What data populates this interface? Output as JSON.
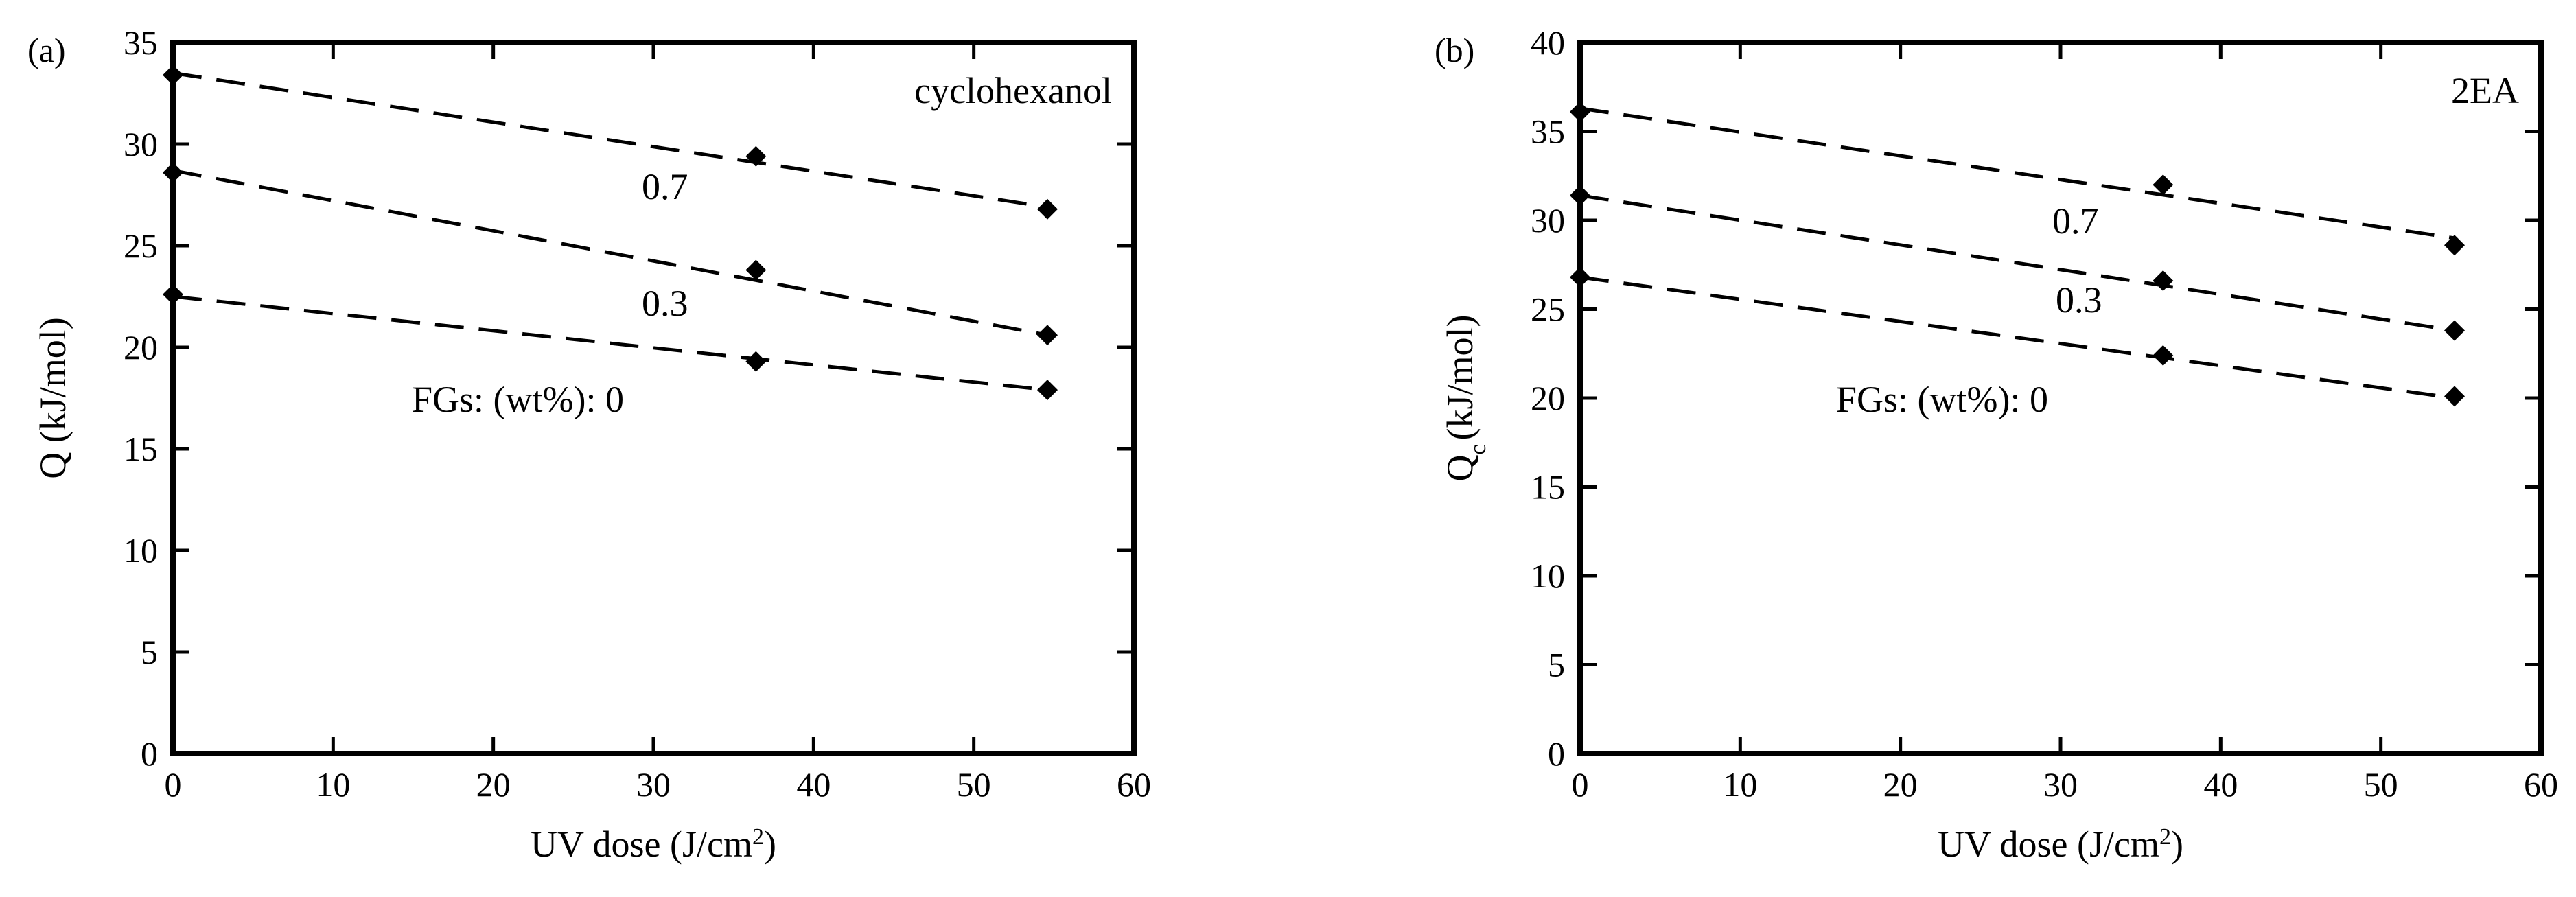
{
  "chart_data": [
    {
      "type": "scatter",
      "panel_label": "(a)",
      "annotation": "cyclohexanol",
      "xlabel": "UV dose (J/cm",
      "xlabel_sup": "2",
      "xlabel_end": ")",
      "ylabel": "Q (kJ/mol)",
      "ylabel_sub": "",
      "ylabel_end": "",
      "xlim": [
        0,
        60
      ],
      "ylim": [
        0,
        35
      ],
      "xticks": [
        0,
        10,
        20,
        30,
        40,
        50,
        60
      ],
      "yticks": [
        0,
        5,
        10,
        15,
        20,
        25,
        30,
        35
      ],
      "grid": false,
      "series": [
        {
          "label": "0.7",
          "x": [
            0,
            36.4,
            54.6
          ],
          "y": [
            33.4,
            29.4,
            26.8
          ],
          "fit": [
            33.5,
            26.9
          ]
        },
        {
          "label": "0.3",
          "x": [
            0,
            36.4,
            54.6
          ],
          "y": [
            28.6,
            23.8,
            20.6
          ],
          "fit": [
            28.7,
            20.6
          ]
        },
        {
          "label": "FGs: (wt%): 0",
          "x": [
            0,
            36.4,
            54.6
          ],
          "y": [
            22.6,
            19.3,
            17.9
          ],
          "fit": [
            22.5,
            17.9
          ]
        }
      ]
    },
    {
      "type": "scatter",
      "panel_label": "(b)",
      "annotation": "2EA",
      "xlabel": "UV dose (J/cm",
      "xlabel_sup": "2",
      "xlabel_end": ")",
      "ylabel": "Q",
      "ylabel_sub": "c",
      "ylabel_end": "(kJ/mol)",
      "xlim": [
        0,
        60
      ],
      "ylim": [
        0,
        40
      ],
      "xticks": [
        0,
        10,
        20,
        30,
        40,
        50,
        60
      ],
      "yticks": [
        0,
        5,
        10,
        15,
        20,
        25,
        30,
        35,
        40
      ],
      "grid": false,
      "series": [
        {
          "label": "0.7",
          "x": [
            0,
            36.4,
            54.6
          ],
          "y": [
            36.1,
            32.0,
            28.6
          ],
          "fit": [
            36.3,
            29.0
          ]
        },
        {
          "label": "0.3",
          "x": [
            0,
            36.4,
            54.6
          ],
          "y": [
            31.4,
            26.6,
            23.8
          ],
          "fit": [
            31.4,
            23.8
          ]
        },
        {
          "label": "FGs: (wt%): 0",
          "x": [
            0,
            36.4,
            54.6
          ],
          "y": [
            26.8,
            22.4,
            20.1
          ],
          "fit": [
            26.8,
            20.0
          ]
        }
      ]
    }
  ]
}
